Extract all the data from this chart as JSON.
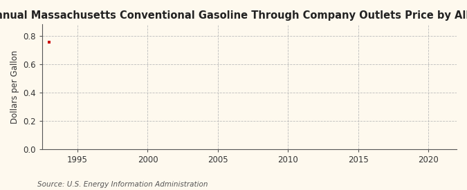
{
  "title": "Annual Massachusetts Conventional Gasoline Through Company Outlets Price by All Sellers",
  "ylabel": "Dollars per Gallon",
  "source": "Source: U.S. Energy Information Administration",
  "background_color": "#fef9ee",
  "data_x": [
    1993
  ],
  "data_y": [
    0.757
  ],
  "data_color": "#cc0000",
  "xlim": [
    1992.5,
    2022
  ],
  "ylim": [
    0.0,
    0.88
  ],
  "xticks": [
    1995,
    2000,
    2005,
    2010,
    2015,
    2020
  ],
  "yticks": [
    0.0,
    0.2,
    0.4,
    0.6,
    0.8
  ],
  "grid_color": "#bbbbbb",
  "title_fontsize": 10.5,
  "ylabel_fontsize": 8.5,
  "tick_fontsize": 8.5,
  "source_fontsize": 7.5
}
